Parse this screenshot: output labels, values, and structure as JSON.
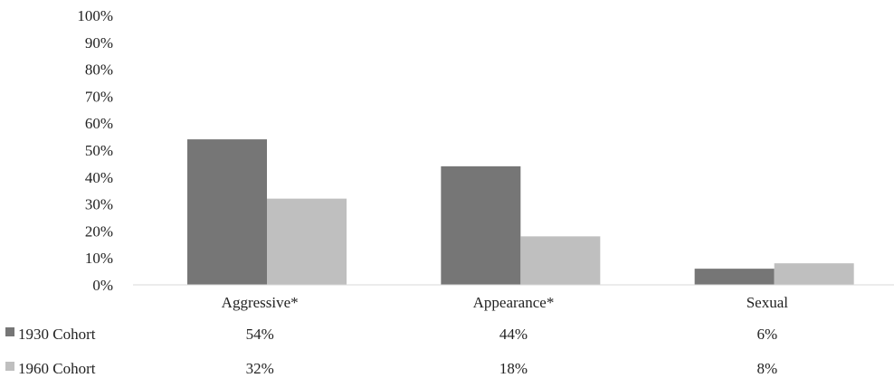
{
  "chart_data": {
    "type": "bar",
    "categories": [
      "Aggressive*",
      "Appearance*",
      "Sexual"
    ],
    "series": [
      {
        "name": "1930 Cohort",
        "values": [
          54,
          44,
          6
        ],
        "labels": [
          "54%",
          "44%",
          "6%"
        ],
        "color": "#767676"
      },
      {
        "name": "1960 Cohort",
        "values": [
          32,
          18,
          8
        ],
        "labels": [
          "32%",
          "18%",
          "8%"
        ],
        "color": "#bfbfbf"
      }
    ],
    "y_ticks": [
      "0%",
      "10%",
      "20%",
      "30%",
      "40%",
      "50%",
      "60%",
      "70%",
      "80%",
      "90%",
      "100%"
    ],
    "ylim": [
      0,
      100
    ],
    "grid": false,
    "legend": "data-table-left"
  }
}
